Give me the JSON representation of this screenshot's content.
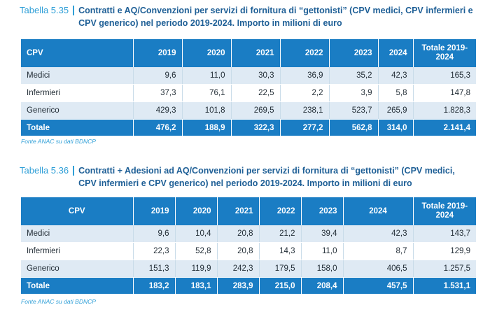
{
  "t1": {
    "label": "Tabella 5.35",
    "title": "Contratti e AQ/Convenzioni per servizi di fornitura di “gettonisti” (CPV medici, CPV infermieri e CPV generico) nel periodo 2019-2024. Importo in milioni di euro",
    "headers": [
      "CPV",
      "2019",
      "2020",
      "2021",
      "2022",
      "2023",
      "2024",
      "Totale 2019-2024"
    ],
    "rows": [
      [
        "Medici",
        "9,6",
        "11,0",
        "30,3",
        "36,9",
        "35,2",
        "42,3",
        "165,3"
      ],
      [
        "Infermieri",
        "37,3",
        "76,1",
        "22,5",
        "2,2",
        "3,9",
        "5,8",
        "147,8"
      ],
      [
        "Generico",
        "429,3",
        "101,8",
        "269,5",
        "238,1",
        "523,7",
        "265,9",
        "1.828,3"
      ]
    ],
    "total": [
      "Totale",
      "476,2",
      "188,9",
      "322,3",
      "277,2",
      "562,8",
      "314,0",
      "2.141,4"
    ],
    "source": "Fonte ANAC su dati BDNCP"
  },
  "t2": {
    "label": "Tabella 5.36",
    "title": "Contratti + Adesioni ad AQ/Convenzioni per servizi di fornitura di “gettonisti” (CPV medici, CPV infermieri e CPV generico) nel periodo 2019-2024. Importo in milioni di euro",
    "headers": [
      "CPV",
      "2019",
      "2020",
      "2021",
      "2022",
      "2023",
      "2024",
      "Totale 2019-2024"
    ],
    "rows": [
      [
        "Medici",
        "9,6",
        "10,4",
        "20,8",
        "21,2",
        "39,4",
        "42,3",
        "143,7"
      ],
      [
        "Infermieri",
        "22,3",
        "52,8",
        "20,8",
        "14,3",
        "11,0",
        "8,7",
        "129,9"
      ],
      [
        "Generico",
        "151,3",
        "119,9",
        "242,3",
        "179,5",
        "158,0",
        "406,5",
        "1.257,5"
      ]
    ],
    "total": [
      "Totale",
      "183,2",
      "183,1",
      "283,9",
      "215,0",
      "208,4",
      "457,5",
      "1.531,1"
    ],
    "source": "Fonte ANAC su dati BDNCP"
  }
}
